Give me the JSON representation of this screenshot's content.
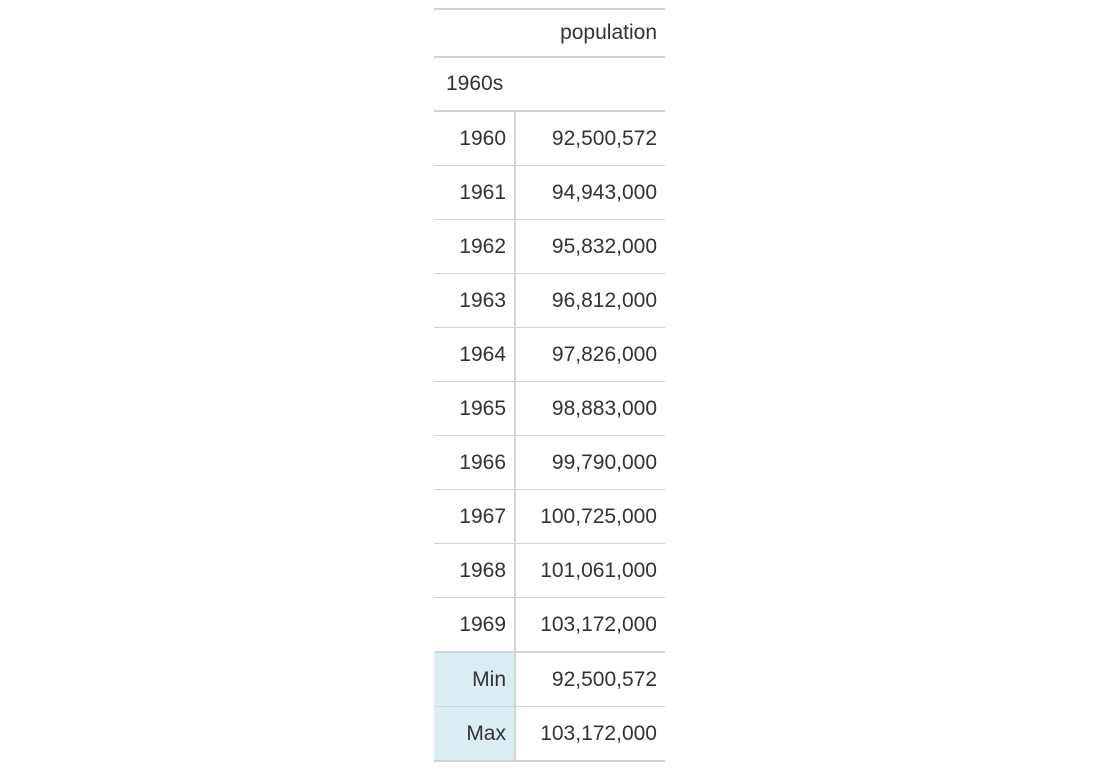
{
  "table": {
    "column_header": "population",
    "group_label": "1960s",
    "rows": [
      {
        "year": "1960",
        "population": "92,500,572"
      },
      {
        "year": "1961",
        "population": "94,943,000"
      },
      {
        "year": "1962",
        "population": "95,832,000"
      },
      {
        "year": "1963",
        "population": "96,812,000"
      },
      {
        "year": "1964",
        "population": "97,826,000"
      },
      {
        "year": "1965",
        "population": "98,883,000"
      },
      {
        "year": "1966",
        "population": "99,790,000"
      },
      {
        "year": "1967",
        "population": "100,725,000"
      },
      {
        "year": "1968",
        "population": "101,061,000"
      },
      {
        "year": "1969",
        "population": "103,172,000"
      }
    ],
    "summary": [
      {
        "label": "Min",
        "population": "92,500,572"
      },
      {
        "label": "Max",
        "population": "103,172,000"
      }
    ],
    "colors": {
      "border": "#d3d3d3",
      "summary_stub_bg": "#d9edf2",
      "text": "#333333"
    }
  }
}
